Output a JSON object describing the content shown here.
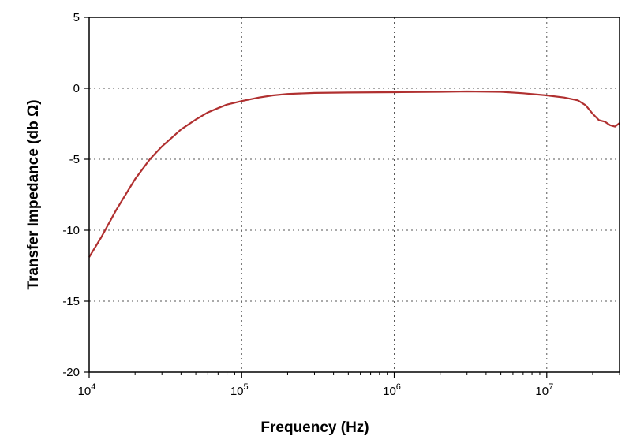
{
  "chart_data": {
    "type": "line",
    "title": "",
    "xlabel": "Frequency (Hz)",
    "ylabel": "Transfer Impedance (db Ω)",
    "x_scale": "log",
    "xlim": [
      10000,
      30000000
    ],
    "ylim": [
      -20,
      5
    ],
    "y_ticks": [
      5,
      0,
      -5,
      -10,
      -15,
      -20
    ],
    "x_ticks": [
      {
        "value": 10000,
        "base": "10",
        "exp": "4"
      },
      {
        "value": 100000,
        "base": "10",
        "exp": "5"
      },
      {
        "value": 1000000,
        "base": "10",
        "exp": "6"
      },
      {
        "value": 10000000,
        "base": "10",
        "exp": "7"
      }
    ],
    "grid": "dotted",
    "legend": "none",
    "series": [
      {
        "color": "#b03030",
        "x": [
          10000,
          12000,
          15000,
          20000,
          25000,
          30000,
          40000,
          50000,
          60000,
          70000,
          80000,
          100000,
          130000,
          160000,
          200000,
          300000,
          500000,
          1000000,
          2000000,
          3000000,
          5000000,
          7000000,
          10000000,
          13000000,
          16000000,
          18000000,
          20000000,
          22000000,
          24000000,
          26000000,
          28000000,
          30000000
        ],
        "y": [
          -11.9,
          -10.5,
          -8.6,
          -6.4,
          -5.0,
          -4.1,
          -2.9,
          -2.2,
          -1.7,
          -1.4,
          -1.15,
          -0.9,
          -0.65,
          -0.5,
          -0.4,
          -0.33,
          -0.3,
          -0.28,
          -0.25,
          -0.22,
          -0.25,
          -0.35,
          -0.5,
          -0.65,
          -0.85,
          -1.2,
          -1.8,
          -2.25,
          -2.35,
          -2.6,
          -2.7,
          -2.45
        ]
      }
    ]
  }
}
